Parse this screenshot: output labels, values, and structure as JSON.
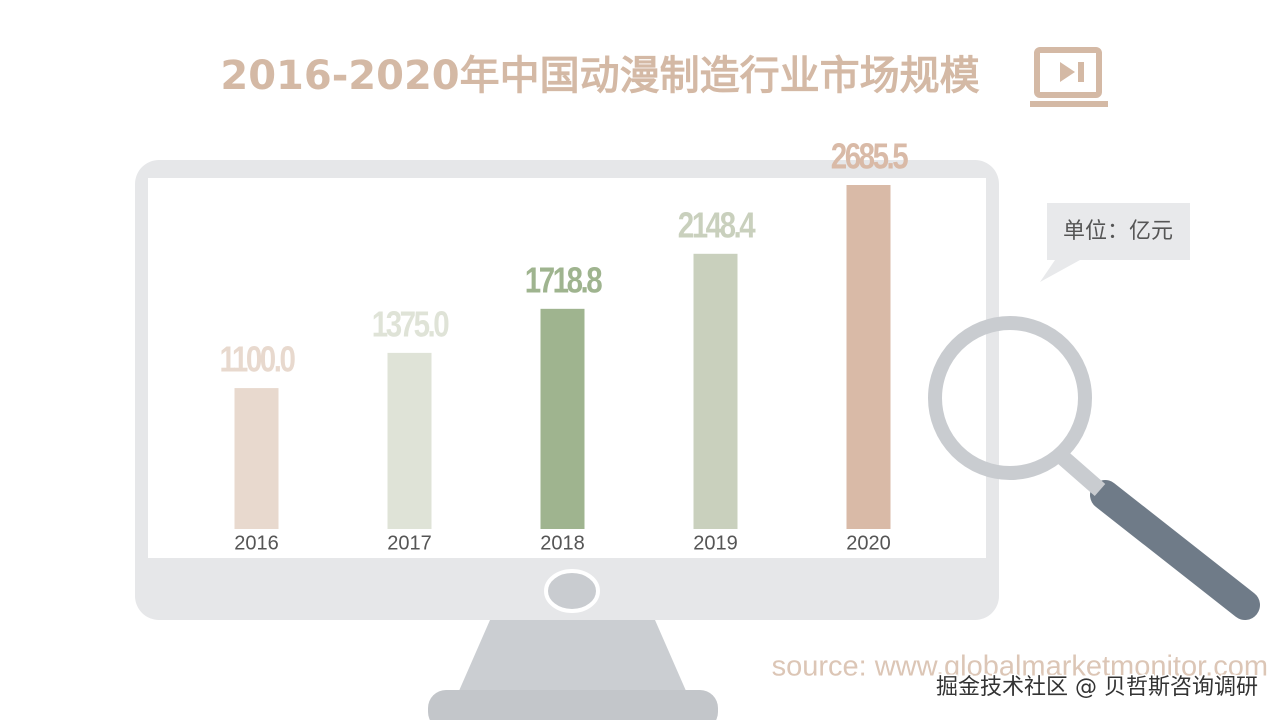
{
  "chart_data": {
    "type": "bar",
    "title": "2016-2020年中国动漫制造行业市场规模",
    "unit": "单位：亿元",
    "source": "source: www.globalmarketmonitor.com",
    "watermark": "掘金技术社区 @ 贝哲斯咨询调研",
    "categories": [
      "2016",
      "2017",
      "2018",
      "2019",
      "2020"
    ],
    "values": [
      1100.0,
      1375.0,
      1718.8,
      2148.4,
      2685.5
    ],
    "value_labels": [
      "1100.0",
      "1375.0",
      "1718.8",
      "2148.4",
      "2685.5"
    ],
    "colors": [
      "#e8d9ce",
      "#dfe3d7",
      "#9fb48f",
      "#c9d0bd",
      "#d9baa7"
    ]
  }
}
